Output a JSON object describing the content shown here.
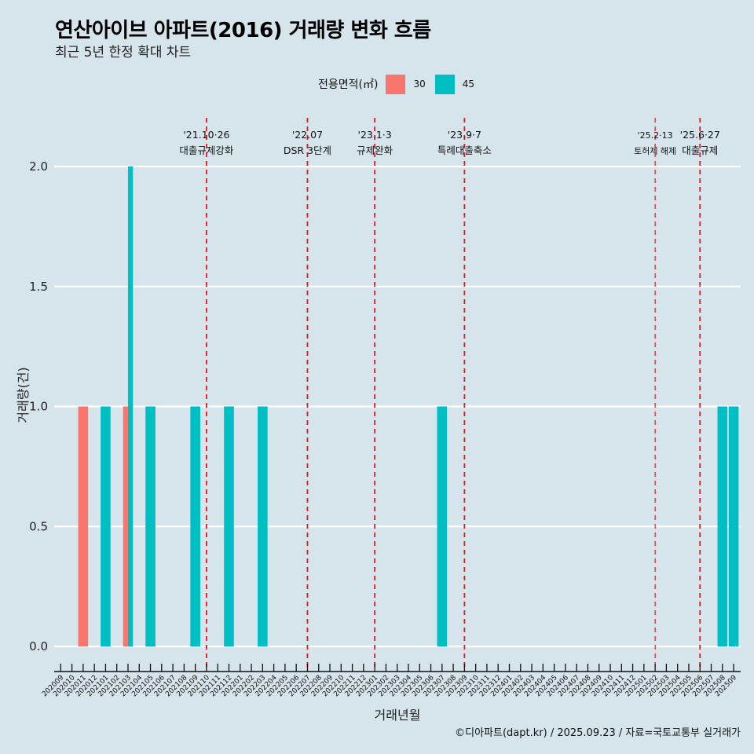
{
  "title": "연산아이브 아파트(2016) 거래량 변화 흐름",
  "subtitle": "최근 5년 한정 확대 차트",
  "legend": {
    "title": "전용면적(㎡)",
    "items": [
      {
        "label": "30",
        "color": "#f8766d"
      },
      {
        "label": "45",
        "color": "#00bfc4"
      }
    ]
  },
  "caption": "©디아파트(dapt.kr) / 2025.09.23 / 자료=국토교통부 실거래가",
  "chart_data": {
    "type": "bar",
    "title": "연산아이브 아파트(2016) 거래량 변화 흐름",
    "subtitle": "최근 5년 한정 확대 차트",
    "xlabel": "거래년월",
    "ylabel": "거래량(건)",
    "ylim": [
      0,
      2
    ],
    "yticks": [
      "0.0",
      "0.5",
      "1.0",
      "1.5",
      "2.0"
    ],
    "ytick_values": [
      0,
      0.5,
      1,
      1.5,
      2
    ],
    "grid": "horizontal",
    "legend_position": "top",
    "categories": [
      "202009",
      "202010",
      "202011",
      "202012",
      "202101",
      "202102",
      "202103",
      "202104",
      "202105",
      "202106",
      "202107",
      "202108",
      "202109",
      "202110",
      "202111",
      "202112",
      "202201",
      "202202",
      "202203",
      "202204",
      "202205",
      "202206",
      "202207",
      "202208",
      "202209",
      "202210",
      "202211",
      "202212",
      "202301",
      "202302",
      "202303",
      "202304",
      "202305",
      "202306",
      "202307",
      "202308",
      "202309",
      "202310",
      "202311",
      "202312",
      "202401",
      "202402",
      "202403",
      "202404",
      "202405",
      "202406",
      "202407",
      "202408",
      "202409",
      "202410",
      "202411",
      "202412",
      "202501",
      "202502",
      "202503",
      "202504",
      "202505",
      "202506",
      "202507",
      "202508",
      "202509"
    ],
    "series": [
      {
        "name": "30",
        "color": "#f8766d",
        "points": [
          {
            "x": "202011",
            "y": 1
          },
          {
            "x": "202103",
            "y": 1
          }
        ]
      },
      {
        "name": "45",
        "color": "#00bfc4",
        "points": [
          {
            "x": "202101",
            "y": 1
          },
          {
            "x": "202103",
            "y": 2
          },
          {
            "x": "202105",
            "y": 1
          },
          {
            "x": "202109",
            "y": 1
          },
          {
            "x": "202112",
            "y": 1
          },
          {
            "x": "202203",
            "y": 1
          },
          {
            "x": "202307",
            "y": 1
          },
          {
            "x": "202508",
            "y": 1
          },
          {
            "x": "202509",
            "y": 1
          }
        ]
      }
    ],
    "annotations": [
      {
        "x": "202110",
        "date": "'21.10·26",
        "label": "대출규제강화",
        "minor": false
      },
      {
        "x": "202207",
        "date": "'22.07",
        "label": "DSR 3단계",
        "minor": false
      },
      {
        "x": "202301",
        "date": "'23.1·3",
        "label": "규제완화",
        "minor": false
      },
      {
        "x": "202309",
        "date": "'23.9·7",
        "label": "특례대출축소",
        "minor": false
      },
      {
        "x": "202502",
        "date": "'25.2·13",
        "label": "토허제 해제",
        "minor": true
      },
      {
        "x": "202506",
        "date": "'25.6·27",
        "label": "대출규제",
        "minor": false
      }
    ],
    "annotation_color": "#e8141c"
  }
}
